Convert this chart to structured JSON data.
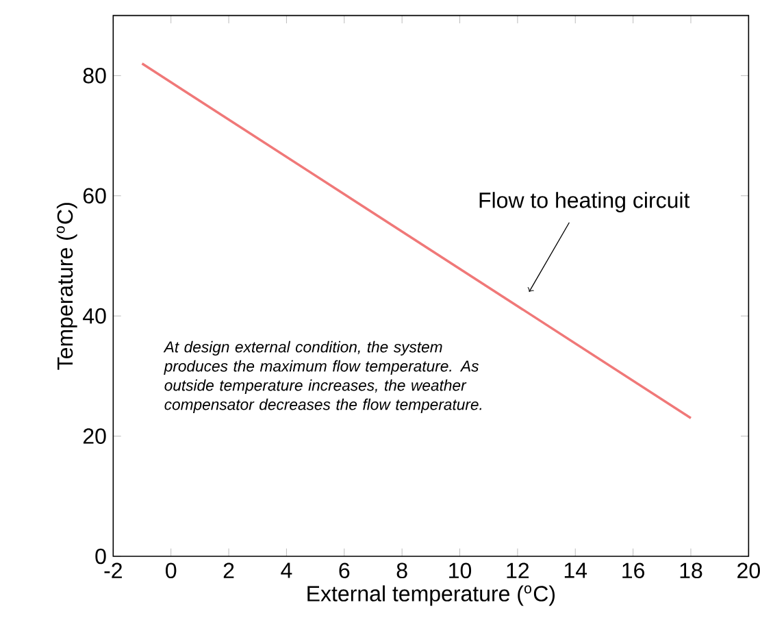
{
  "chart_data": {
    "type": "line",
    "xlabel": "External temperature ($^{o}$C)",
    "ylabel": "Temperature ($^{o}$C)",
    "xlim": [
      -2,
      20
    ],
    "ylim": [
      0,
      90
    ],
    "xticks": [
      -2,
      0,
      2,
      4,
      6,
      8,
      10,
      12,
      14,
      16,
      18,
      20
    ],
    "yticks": [
      0,
      20,
      40,
      60,
      80
    ],
    "grid": false,
    "series": [
      {
        "x": [
          -1,
          18
        ],
        "values": [
          82,
          23
        ],
        "color": "#f07878"
      }
    ],
    "annotations": [
      {
        "text": "Flow to heating circuit",
        "x": 12.4,
        "y": 44
      },
      "At design external condition, the system produces the maximum flow temperature. As outside temperature increases, the weather compensator decreases the flow temperature."
    ]
  }
}
